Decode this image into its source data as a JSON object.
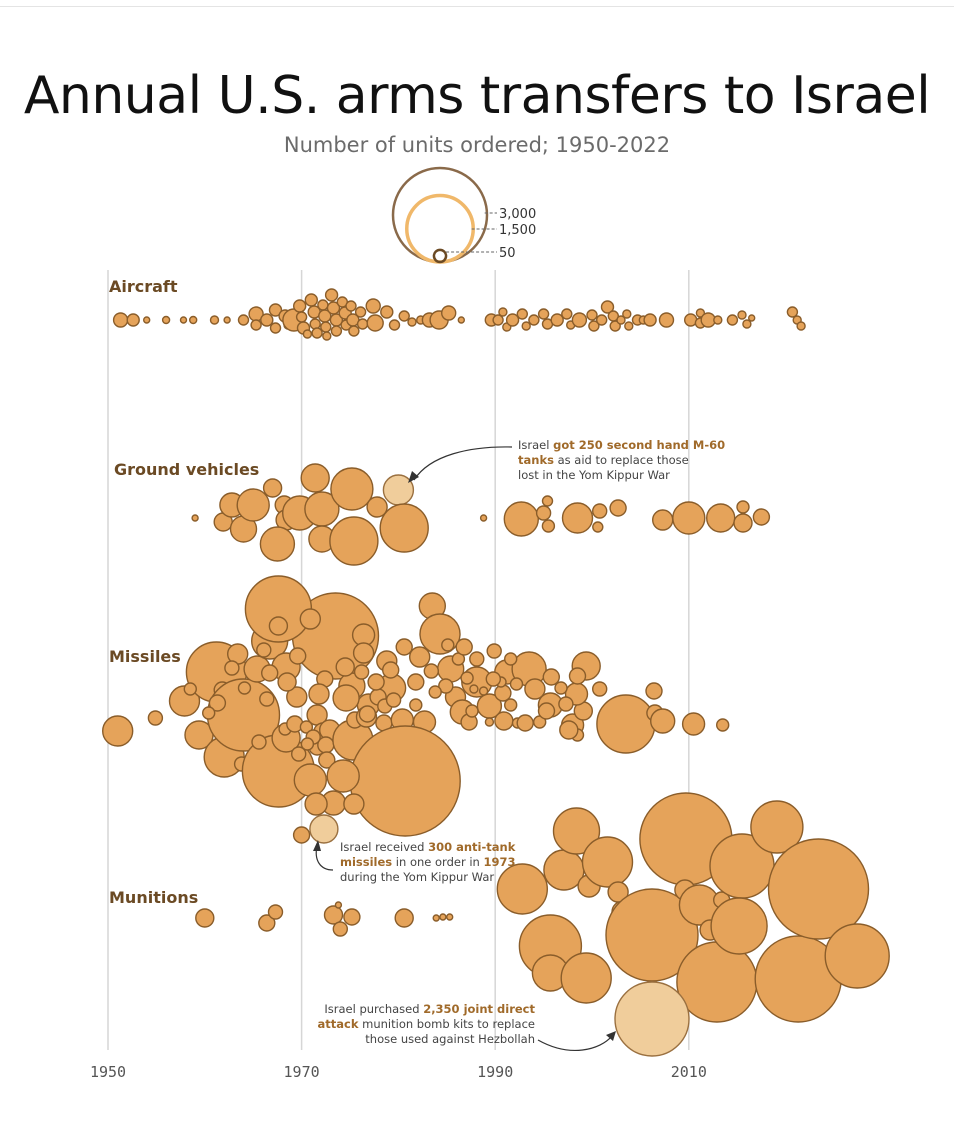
{
  "chart_data": {
    "type": "bubble-beeswarm",
    "title": "Annual U.S. arms transfers to Israel",
    "subtitle": "Number of units ordered; 1950-2022",
    "x_ticks": [
      "1950",
      "1970",
      "1990",
      "2010"
    ],
    "xlim": [
      1950,
      2022
    ],
    "gridlines": true,
    "size_legend": {
      "values": [
        3000,
        1500,
        50
      ],
      "labels": [
        "3,000",
        "1,500",
        "50"
      ]
    },
    "categories": [
      "Aircraft",
      "Ground vehicles",
      "Missiles",
      "Munitions"
    ],
    "highlights": [
      {
        "category": "Ground vehicles",
        "year": 1980,
        "units": 250
      },
      {
        "category": "Missiles",
        "year": 1973,
        "units": 300
      },
      {
        "category": "Munitions",
        "year": 2006,
        "units": 2350
      }
    ]
  },
  "annotations": {
    "tanks": [
      "Israel ",
      "got ",
      "250 second hand M-60",
      " ",
      "tanks",
      " as aid to replace those",
      "lost in the Yom Kippur War"
    ],
    "missiles": [
      "Israel received ",
      "300 anti-tank",
      "missiles",
      " in one order in ",
      "1973",
      "during the Yom Kippur War"
    ],
    "munitions": [
      "Israel purchased  ",
      "2,350 joint direct",
      "attack",
      " munition bomb kits to replace",
      "those used against Hezbollah"
    ]
  }
}
